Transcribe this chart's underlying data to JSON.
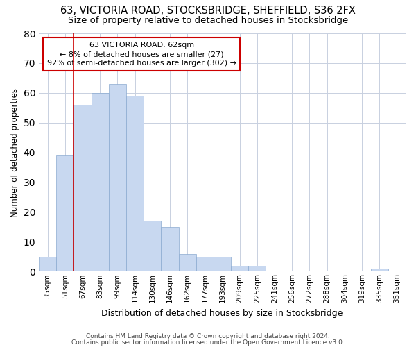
{
  "title_line1": "63, VICTORIA ROAD, STOCKSBRIDGE, SHEFFIELD, S36 2FX",
  "title_line2": "Size of property relative to detached houses in Stocksbridge",
  "xlabel": "Distribution of detached houses by size in Stocksbridge",
  "ylabel": "Number of detached properties",
  "footer_line1": "Contains HM Land Registry data © Crown copyright and database right 2024.",
  "footer_line2": "Contains public sector information licensed under the Open Government Licence v3.0.",
  "categories": [
    "35sqm",
    "51sqm",
    "67sqm",
    "83sqm",
    "99sqm",
    "114sqm",
    "130sqm",
    "146sqm",
    "162sqm",
    "177sqm",
    "193sqm",
    "209sqm",
    "225sqm",
    "241sqm",
    "256sqm",
    "272sqm",
    "288sqm",
    "304sqm",
    "319sqm",
    "335sqm",
    "351sqm"
  ],
  "values": [
    5,
    39,
    56,
    60,
    63,
    59,
    17,
    15,
    6,
    5,
    5,
    2,
    2,
    0,
    0,
    0,
    0,
    0,
    0,
    1,
    0
  ],
  "bar_color": "#c8d8f0",
  "bar_edge_color": "#8aaad0",
  "vline_x": 2.0,
  "vline_color": "#cc0000",
  "annotation_text": "63 VICTORIA ROAD: 62sqm\n← 8% of detached houses are smaller (27)\n92% of semi-detached houses are larger (302) →",
  "annotation_box_color": "white",
  "annotation_box_edge_color": "#cc0000",
  "ylim": [
    0,
    80
  ],
  "yticks": [
    0,
    10,
    20,
    30,
    40,
    50,
    60,
    70,
    80
  ],
  "grid_color": "#c8d0e0",
  "background_color": "white",
  "plot_background": "white"
}
